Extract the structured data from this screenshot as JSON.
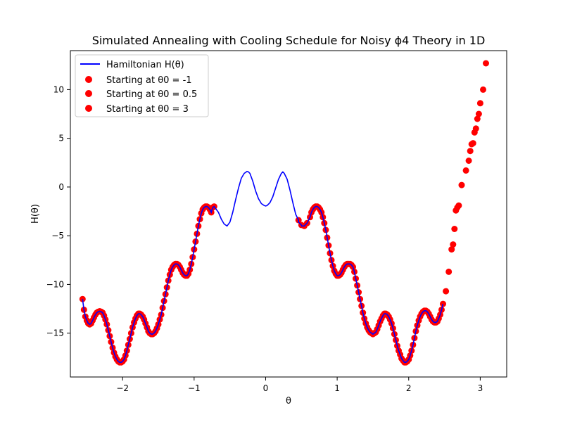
{
  "chart_data": {
    "type": "line+scatter",
    "title": "Simulated Annealing with Cooling Schedule for Noisy ϕ4 Theory in 1D",
    "xlabel": "θ",
    "ylabel": "H(θ)",
    "xlim": [
      -2.73,
      3.37
    ],
    "ylim": [
      -19.5,
      14.0
    ],
    "xticks": [
      -2,
      -1,
      0,
      1,
      2,
      3
    ],
    "yticks": [
      -15,
      -10,
      -5,
      0,
      5,
      10
    ],
    "tick_labels": {
      "x": [
        "−2",
        "−1",
        "0",
        "1",
        "2",
        "3"
      ],
      "y": [
        "−15",
        "−10",
        "−5",
        "0",
        "5",
        "10"
      ]
    },
    "grid": false,
    "legend_position": "top-left",
    "line_series": {
      "name": "Hamiltonian H(θ)",
      "color": "#0000ff",
      "x": [
        -0.7,
        -0.66,
        -0.62,
        -0.58,
        -0.54,
        -0.5,
        -0.46,
        -0.42,
        -0.38,
        -0.34,
        -0.3,
        -0.26,
        -0.24,
        -0.22,
        -0.18,
        -0.14,
        -0.1,
        -0.06,
        -0.02,
        0.0,
        0.02,
        0.06,
        0.1,
        0.14,
        0.18,
        0.22,
        0.24,
        0.26,
        0.3,
        0.34,
        0.38,
        0.42,
        0.46,
        0.5
      ],
      "y": [
        -2.2,
        -2.6,
        -3.3,
        -3.8,
        -4.0,
        -3.6,
        -2.6,
        -1.3,
        -0.1,
        0.9,
        1.4,
        1.6,
        1.55,
        1.4,
        0.6,
        -0.4,
        -1.2,
        -1.7,
        -1.9,
        -1.95,
        -1.9,
        -1.6,
        -1.0,
        -0.1,
        0.8,
        1.4,
        1.55,
        1.4,
        0.8,
        -0.3,
        -1.6,
        -2.8,
        -3.6,
        -4.0
      ]
    },
    "scatter_series": [
      {
        "name": "Starting at θ0 = -1",
        "color": "#ff0000",
        "theta0": -1
      },
      {
        "name": "Starting at θ0 = 0.5",
        "color": "#ff0000",
        "theta0": 0.5
      },
      {
        "name": "Starting at θ0 = 3",
        "color": "#ff0000",
        "theta0": 3
      }
    ],
    "scatter_points": [
      [
        -2.56,
        -11.5
      ],
      [
        -2.54,
        -12.6
      ],
      [
        -2.52,
        -13.3
      ],
      [
        -2.5,
        -13.7
      ],
      [
        -2.48,
        -14.0
      ],
      [
        -2.46,
        -14.1
      ],
      [
        -2.44,
        -14.0
      ],
      [
        -2.42,
        -13.7
      ],
      [
        -2.4,
        -13.4
      ],
      [
        -2.38,
        -13.1
      ],
      [
        -2.36,
        -12.9
      ],
      [
        -2.34,
        -12.8
      ],
      [
        -2.32,
        -12.75
      ],
      [
        -2.3,
        -12.8
      ],
      [
        -2.28,
        -12.9
      ],
      [
        -2.26,
        -13.2
      ],
      [
        -2.24,
        -13.6
      ],
      [
        -2.22,
        -14.1
      ],
      [
        -2.2,
        -14.7
      ],
      [
        -2.18,
        -15.3
      ],
      [
        -2.16,
        -15.9
      ],
      [
        -2.14,
        -16.5
      ],
      [
        -2.12,
        -17.0
      ],
      [
        -2.1,
        -17.4
      ],
      [
        -2.08,
        -17.7
      ],
      [
        -2.06,
        -17.9
      ],
      [
        -2.04,
        -18.0
      ],
      [
        -2.02,
        -18.0
      ],
      [
        -2.0,
        -17.9
      ],
      [
        -1.98,
        -17.7
      ],
      [
        -1.96,
        -17.3
      ],
      [
        -1.94,
        -16.8
      ],
      [
        -1.92,
        -16.2
      ],
      [
        -1.9,
        -15.6
      ],
      [
        -1.88,
        -15.0
      ],
      [
        -1.86,
        -14.4
      ],
      [
        -1.84,
        -13.9
      ],
      [
        -1.82,
        -13.5
      ],
      [
        -1.8,
        -13.2
      ],
      [
        -1.78,
        -13.0
      ],
      [
        -1.76,
        -13.0
      ],
      [
        -1.74,
        -13.1
      ],
      [
        -1.72,
        -13.3
      ],
      [
        -1.7,
        -13.6
      ],
      [
        -1.68,
        -14.0
      ],
      [
        -1.66,
        -14.4
      ],
      [
        -1.64,
        -14.8
      ],
      [
        -1.62,
        -15.0
      ],
      [
        -1.6,
        -15.1
      ],
      [
        -1.58,
        -15.1
      ],
      [
        -1.56,
        -15.0
      ],
      [
        -1.54,
        -14.8
      ],
      [
        -1.52,
        -14.5
      ],
      [
        -1.5,
        -14.1
      ],
      [
        -1.48,
        -13.6
      ],
      [
        -1.46,
        -13.1
      ],
      [
        -1.44,
        -12.4
      ],
      [
        -1.42,
        -11.7
      ],
      [
        -1.4,
        -11.0
      ],
      [
        -1.38,
        -10.3
      ],
      [
        -1.36,
        -9.6
      ],
      [
        -1.34,
        -9.0
      ],
      [
        -1.32,
        -8.5
      ],
      [
        -1.3,
        -8.2
      ],
      [
        -1.28,
        -8.0
      ],
      [
        -1.26,
        -7.9
      ],
      [
        -1.24,
        -7.9
      ],
      [
        -1.22,
        -8.0
      ],
      [
        -1.2,
        -8.2
      ],
      [
        -1.18,
        -8.5
      ],
      [
        -1.16,
        -8.8
      ],
      [
        -1.14,
        -9.0
      ],
      [
        -1.12,
        -9.1
      ],
      [
        -1.1,
        -9.1
      ],
      [
        -1.08,
        -8.9
      ],
      [
        -1.06,
        -8.5
      ],
      [
        -1.04,
        -7.9
      ],
      [
        -1.02,
        -7.2
      ],
      [
        -1.0,
        -6.4
      ],
      [
        -0.98,
        -5.6
      ],
      [
        -0.96,
        -4.8
      ],
      [
        -0.94,
        -4.0
      ],
      [
        -0.92,
        -3.3
      ],
      [
        -0.9,
        -2.7
      ],
      [
        -0.88,
        -2.3
      ],
      [
        -0.86,
        -2.1
      ],
      [
        -0.84,
        -2.0
      ],
      [
        -0.82,
        -2.0
      ],
      [
        -0.8,
        -2.1
      ],
      [
        -0.78,
        -2.3
      ],
      [
        -0.76,
        -2.6
      ],
      [
        -0.74,
        -2.1
      ],
      [
        -0.72,
        -2.0
      ],
      [
        0.46,
        -3.4
      ],
      [
        0.5,
        -3.9
      ],
      [
        0.54,
        -4.0
      ],
      [
        0.58,
        -3.7
      ],
      [
        0.62,
        -3.1
      ],
      [
        0.64,
        -2.6
      ],
      [
        0.66,
        -2.3
      ],
      [
        0.68,
        -2.1
      ],
      [
        0.7,
        -2.0
      ],
      [
        0.72,
        -2.0
      ],
      [
        0.74,
        -2.1
      ],
      [
        0.76,
        -2.3
      ],
      [
        0.78,
        -2.6
      ],
      [
        0.8,
        -3.1
      ],
      [
        0.82,
        -3.7
      ],
      [
        0.84,
        -4.4
      ],
      [
        0.86,
        -5.2
      ],
      [
        0.88,
        -6.0
      ],
      [
        0.9,
        -6.8
      ],
      [
        0.92,
        -7.5
      ],
      [
        0.94,
        -8.1
      ],
      [
        0.96,
        -8.6
      ],
      [
        0.98,
        -8.9
      ],
      [
        1.0,
        -9.1
      ],
      [
        1.02,
        -9.1
      ],
      [
        1.04,
        -9.0
      ],
      [
        1.06,
        -8.8
      ],
      [
        1.08,
        -8.5
      ],
      [
        1.1,
        -8.2
      ],
      [
        1.12,
        -8.0
      ],
      [
        1.14,
        -7.9
      ],
      [
        1.16,
        -7.9
      ],
      [
        1.18,
        -7.9
      ],
      [
        1.2,
        -8.0
      ],
      [
        1.22,
        -8.2
      ],
      [
        1.24,
        -8.7
      ],
      [
        1.26,
        -9.4
      ],
      [
        1.28,
        -10.1
      ],
      [
        1.3,
        -10.8
      ],
      [
        1.32,
        -11.5
      ],
      [
        1.34,
        -12.2
      ],
      [
        1.36,
        -12.9
      ],
      [
        1.38,
        -13.5
      ],
      [
        1.4,
        -14.0
      ],
      [
        1.42,
        -14.4
      ],
      [
        1.44,
        -14.7
      ],
      [
        1.46,
        -14.9
      ],
      [
        1.48,
        -15.0
      ],
      [
        1.5,
        -15.1
      ],
      [
        1.52,
        -15.0
      ],
      [
        1.54,
        -14.9
      ],
      [
        1.56,
        -14.6
      ],
      [
        1.58,
        -14.2
      ],
      [
        1.6,
        -13.8
      ],
      [
        1.62,
        -13.5
      ],
      [
        1.64,
        -13.2
      ],
      [
        1.66,
        -13.0
      ],
      [
        1.68,
        -13.0
      ],
      [
        1.7,
        -13.1
      ],
      [
        1.72,
        -13.3
      ],
      [
        1.74,
        -13.6
      ],
      [
        1.76,
        -14.0
      ],
      [
        1.78,
        -14.5
      ],
      [
        1.8,
        -15.1
      ],
      [
        1.82,
        -15.7
      ],
      [
        1.84,
        -16.3
      ],
      [
        1.86,
        -16.8
      ],
      [
        1.88,
        -17.2
      ],
      [
        1.9,
        -17.6
      ],
      [
        1.92,
        -17.8
      ],
      [
        1.94,
        -18.0
      ],
      [
        1.96,
        -18.0
      ],
      [
        1.98,
        -17.9
      ],
      [
        2.0,
        -17.7
      ],
      [
        2.02,
        -17.3
      ],
      [
        2.04,
        -16.8
      ],
      [
        2.06,
        -16.2
      ],
      [
        2.08,
        -15.5
      ],
      [
        2.1,
        -14.8
      ],
      [
        2.12,
        -14.2
      ],
      [
        2.14,
        -13.7
      ],
      [
        2.16,
        -13.3
      ],
      [
        2.18,
        -13.0
      ],
      [
        2.2,
        -12.8
      ],
      [
        2.22,
        -12.7
      ],
      [
        2.24,
        -12.7
      ],
      [
        2.26,
        -12.8
      ],
      [
        2.28,
        -13.0
      ],
      [
        2.3,
        -13.3
      ],
      [
        2.32,
        -13.6
      ],
      [
        2.34,
        -13.8
      ],
      [
        2.36,
        -13.9
      ],
      [
        2.38,
        -13.9
      ],
      [
        2.4,
        -13.8
      ],
      [
        2.42,
        -13.5
      ],
      [
        2.44,
        -13.1
      ],
      [
        2.46,
        -12.6
      ],
      [
        2.48,
        -12.0
      ],
      [
        2.52,
        -10.7
      ],
      [
        2.56,
        -8.7
      ],
      [
        2.6,
        -6.4
      ],
      [
        2.62,
        -5.9
      ],
      [
        2.64,
        -4.3
      ],
      [
        2.66,
        -2.4
      ],
      [
        2.68,
        -2.1
      ],
      [
        2.7,
        -1.9
      ],
      [
        2.74,
        0.2
      ],
      [
        2.8,
        1.7
      ],
      [
        2.84,
        2.7
      ],
      [
        2.86,
        3.7
      ],
      [
        2.88,
        4.4
      ],
      [
        2.9,
        4.5
      ],
      [
        2.92,
        5.6
      ],
      [
        2.94,
        6.0
      ],
      [
        2.96,
        7.0
      ],
      [
        2.98,
        7.5
      ],
      [
        3.0,
        8.6
      ],
      [
        3.04,
        10.0
      ],
      [
        3.08,
        12.7
      ]
    ]
  },
  "legend": {
    "line_label": "Hamiltonian H(θ)",
    "scatter_labels": [
      "Starting at θ0 = -1",
      "Starting at θ0 = 0.5",
      "Starting at θ0 = 3"
    ]
  }
}
